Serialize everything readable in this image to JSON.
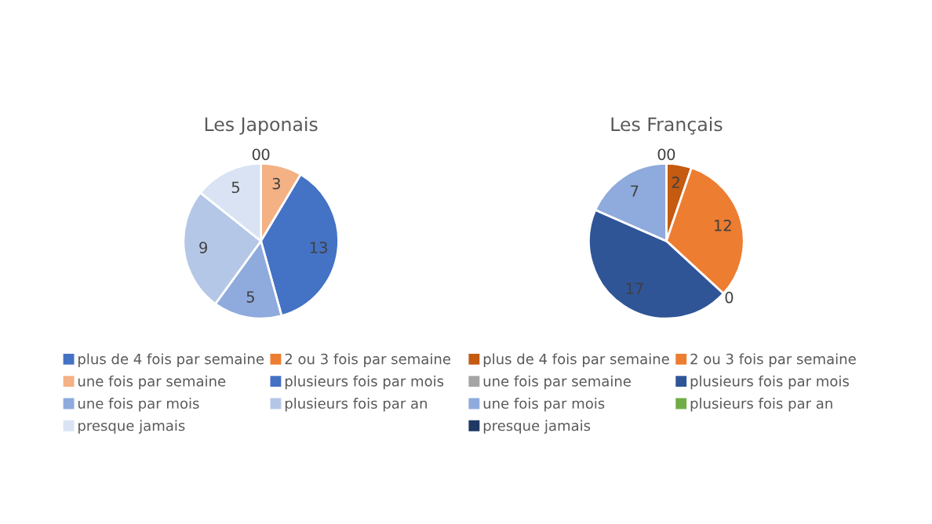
{
  "chart_data": [
    {
      "type": "pie",
      "title": "Les Japonais",
      "categories": [
        "plus de 4 fois par semaine",
        "2 ou 3 fois par semaine",
        "une fois par semaine",
        "plusieurs fois par mois",
        "une fois par mois",
        "plusieurs fois par an",
        "presque jamais"
      ],
      "values": [
        0,
        0,
        3,
        13,
        5,
        9,
        5
      ],
      "value_labels": [
        "0",
        "0",
        "3",
        "13",
        "5",
        "9",
        "5"
      ],
      "colors": [
        "#4472c4",
        "#ed7d31",
        "#f4b183",
        "#4472c4",
        "#8faadc",
        "#b4c7e7",
        "#dae3f3"
      ],
      "legend": "bottom"
    },
    {
      "type": "pie",
      "title": "Les Français",
      "categories": [
        "plus de 4 fois par semaine",
        "2 ou 3 fois par semaine",
        "une fois par semaine",
        "plusieurs fois par mois",
        "une fois par mois",
        "plusieurs fois par an",
        "presque jamais"
      ],
      "values": [
        2,
        12,
        0,
        17,
        7,
        0,
        0
      ],
      "value_labels": [
        "2",
        "12",
        "0",
        "17",
        "7",
        "0",
        "0"
      ],
      "colors": [
        "#c55a11",
        "#ed7d31",
        "#a5a5a5",
        "#2f5597",
        "#8faadc",
        "#70ad47",
        "#1f3864"
      ],
      "legend": "bottom"
    }
  ]
}
